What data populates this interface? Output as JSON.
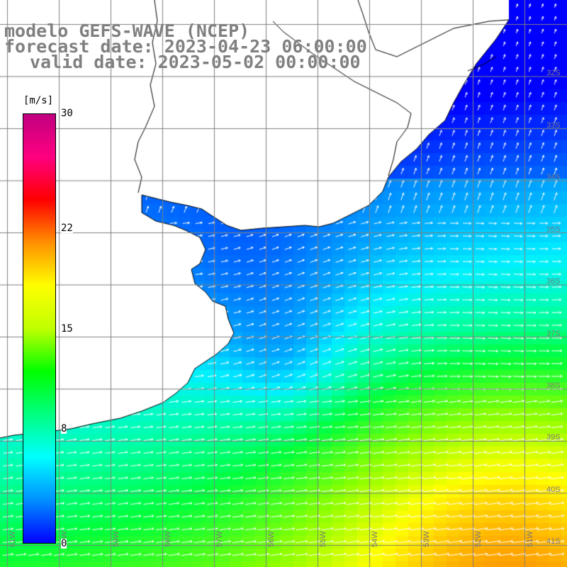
{
  "header": {
    "model": "modelo GEFS-WAVE (NCEP)",
    "forecast": "forecast date: 2023-04-23 06:00:00",
    "valid": "valid date: 2023-05-02 00:00:00"
  },
  "colorbar": {
    "units": "[m/s]",
    "ticks": [
      {
        "label": "30",
        "value": 30
      },
      {
        "label": "22",
        "value": 22
      },
      {
        "label": "15",
        "value": 15
      },
      {
        "label": "8",
        "value": 8
      },
      {
        "label": "0",
        "value": 0
      }
    ],
    "colors": [
      "#0000ff",
      "#0090ff",
      "#00ffff",
      "#00ff80",
      "#00ff00",
      "#c0ff00",
      "#ffff00",
      "#ff9000",
      "#ff0000",
      "#ff0080",
      "#c00080"
    ]
  },
  "longitude_labels": [
    "61W",
    "60W",
    "59W",
    "58W",
    "57W",
    "56W",
    "55W",
    "54W",
    "53W",
    "52W",
    "51W"
  ],
  "latitude_labels": [
    "32S",
    "33S",
    "34S",
    "35S",
    "36S",
    "37S",
    "38S",
    "39S",
    "40S",
    "41S"
  ],
  "colors": {
    "land": "#ffffff",
    "coastline": "#000000",
    "grid": "#808080",
    "vector": "#ffffff",
    "header_text": "#808080"
  }
}
